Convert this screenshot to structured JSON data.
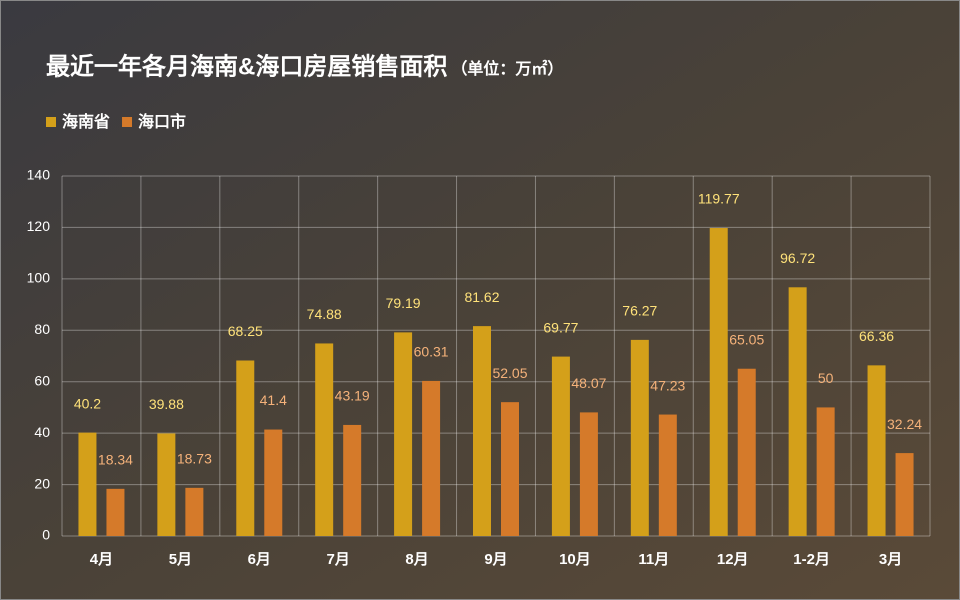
{
  "chart_data": {
    "type": "bar",
    "title": "最近一年各月海南&海口房屋销售面积",
    "subtitle": "（单位：万㎡）",
    "categories": [
      "4月",
      "5月",
      "6月",
      "7月",
      "8月",
      "9月",
      "10月",
      "11月",
      "12月",
      "1-2月",
      "3月"
    ],
    "series": [
      {
        "name": "海南省",
        "color": "#d4a01a",
        "label_color": "#ffe27a",
        "values": [
          40.2,
          39.88,
          68.25,
          74.88,
          79.19,
          81.62,
          69.77,
          76.27,
          119.77,
          96.72,
          66.36
        ]
      },
      {
        "name": "海口市",
        "color": "#d57a2a",
        "label_color": "#f5b27a",
        "values": [
          18.34,
          18.73,
          41.4,
          43.19,
          60.31,
          52.05,
          48.07,
          47.23,
          65.05,
          50,
          32.24
        ]
      }
    ],
    "ylim": [
      0,
      140
    ],
    "yticks": [
      0,
      20,
      40,
      60,
      80,
      100,
      120,
      140
    ],
    "grid": true,
    "legend": "top-left"
  }
}
